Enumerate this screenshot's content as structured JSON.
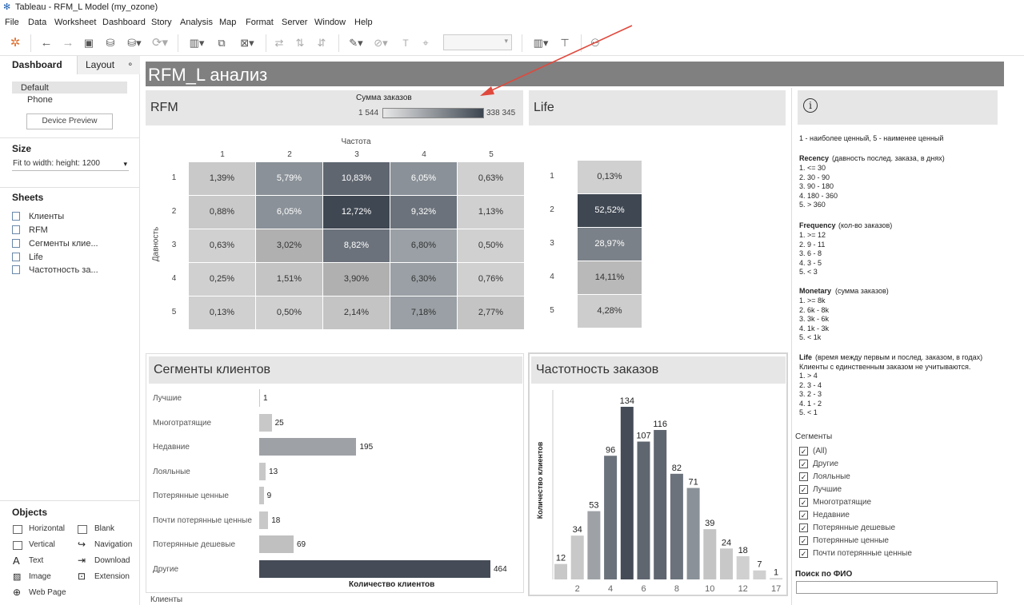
{
  "window": {
    "title": "Tableau - RFM_L Model (my_ozone)"
  },
  "menu": [
    "File",
    "Data",
    "Worksheet",
    "Dashboard",
    "Story",
    "Analysis",
    "Map",
    "Format",
    "Server",
    "Window",
    "Help"
  ],
  "left_pane": {
    "tab_dashboard": "Dashboard",
    "tab_layout": "Layout",
    "devices": [
      "Default",
      "Phone"
    ],
    "device_preview": "Device Preview",
    "size_header": "Size",
    "size_value": "Fit to width: height: 1200",
    "sheets_header": "Sheets",
    "sheets": [
      "Клиенты",
      "RFM",
      "Сегменты клие...",
      "Life",
      "Частотность за..."
    ],
    "objects_header": "Objects",
    "objects": [
      "Horizontal",
      "Blank",
      "Vertical",
      "Navigation",
      "Text",
      "Download",
      "Image",
      "Extension",
      "Web Page"
    ]
  },
  "dashboard": {
    "title": "RFM_L анализ"
  },
  "rfm": {
    "title": "RFM",
    "legend_title": "Сумма заказов",
    "legend_min": "1 544",
    "legend_max": "338 345",
    "col_axis_title": "Частота",
    "row_axis_title": "Давность",
    "cols": [
      "1",
      "2",
      "3",
      "4",
      "5"
    ],
    "rows": [
      "1",
      "2",
      "3",
      "4",
      "5"
    ],
    "cells": [
      [
        "1,39%",
        "5,79%",
        "10,83%",
        "6,05%",
        "0,63%"
      ],
      [
        "0,88%",
        "6,05%",
        "12,72%",
        "9,32%",
        "1,13%"
      ],
      [
        "0,63%",
        "3,02%",
        "8,82%",
        "6,80%",
        "0,50%"
      ],
      [
        "0,25%",
        "1,51%",
        "3,90%",
        "6,30%",
        "0,76%"
      ],
      [
        "0,13%",
        "0,50%",
        "2,14%",
        "7,18%",
        "2,77%"
      ]
    ],
    "shade": [
      [
        "#c9c9c9",
        "#8a9198",
        "#5f6670",
        "#8a9198",
        "#d0d0d0"
      ],
      [
        "#c9c9c9",
        "#8a9198",
        "#3f4752",
        "#6b727b",
        "#d0d0d0"
      ],
      [
        "#d0d0d0",
        "#b0b0b0",
        "#6b727b",
        "#9aa0a5",
        "#d0d0d0"
      ],
      [
        "#d0d0d0",
        "#c4c4c4",
        "#b0b0b0",
        "#9aa0a5",
        "#d0d0d0"
      ],
      [
        "#d0d0d0",
        "#d0d0d0",
        "#c4c4c4",
        "#9aa0a5",
        "#c4c4c4"
      ]
    ]
  },
  "life": {
    "title": "Life",
    "rows": [
      "1",
      "2",
      "3",
      "4",
      "5"
    ],
    "cells": [
      "0,13%",
      "52,52%",
      "28,97%",
      "14,11%",
      "4,28%"
    ],
    "shade": [
      "#d0d0d0",
      "#3f4752",
      "#7b8188",
      "#b9b9b9",
      "#cdcdcd"
    ]
  },
  "notes": {
    "info_icon": "info-icon",
    "intro": "1 - наиболее ценный, 5 - наименее ценный",
    "recency_title": "Recency",
    "recency_sub": "(давность послед. заказа, в днях)",
    "recency": [
      "1. <= 30",
      "2. 30 - 90",
      "3. 90 - 180",
      "4. 180 - 360",
      "5. > 360"
    ],
    "frequency_title": "Frequency",
    "frequency_sub": "(кол-во заказов)",
    "frequency": [
      "1. >= 12",
      "2. 9 - 11",
      "3. 6 - 8",
      "4. 3 - 5",
      "5. < 3"
    ],
    "monetary_title": "Monetary",
    "monetary_sub": "(сумма заказов)",
    "monetary": [
      "1. >= 8k",
      "2. 6k - 8k",
      "3. 3k - 6k",
      "4. 1k - 3k",
      "5.  < 1k"
    ],
    "life_title": "Life",
    "life_sub": "(время между первым и послед. заказом, в годах)",
    "life_note": "Клиенты  с единственным заказом не учитываются.",
    "life": [
      "1. > 4",
      "2. 3 - 4",
      "3. 2 - 3",
      "4. 1 - 2",
      "5. < 1"
    ]
  },
  "filters": {
    "title": "Сегменты",
    "items": [
      "(All)",
      "Другие",
      "Лояльные",
      "Лучшие",
      "Многотратящие",
      "Недавние",
      "Потерянные дешевые",
      "Потерянные ценные",
      "Почти потерянные ценные"
    ],
    "search_title": "Поиск по ФИО",
    "search_value": ""
  },
  "segments": {
    "title": "Сегменты клиентов",
    "x_title": "Количество клиентов",
    "items": [
      {
        "label": "Лучшие",
        "value": 1,
        "color": "#c8c8c8"
      },
      {
        "label": "Многотратящие",
        "value": 25,
        "color": "#c8c8c8"
      },
      {
        "label": "Недавние",
        "value": 195,
        "color": "#9ea2a6"
      },
      {
        "label": "Лояльные",
        "value": 13,
        "color": "#c8c8c8"
      },
      {
        "label": "Потерянные ценные",
        "value": 9,
        "color": "#c8c8c8"
      },
      {
        "label": "Почти потерянные ценные",
        "value": 18,
        "color": "#c8c8c8"
      },
      {
        "label": "Потерянные дешевые",
        "value": 69,
        "color": "#c0c0c0"
      },
      {
        "label": "Другие",
        "value": 464,
        "color": "#454c57"
      }
    ],
    "xmax": 464
  },
  "chart_data": {
    "type": "bar",
    "title": "Частотность заказов",
    "ylabel": "Количество клиентов",
    "x": [
      1,
      2,
      3,
      4,
      5,
      6,
      7,
      8,
      9,
      10,
      11,
      12,
      13,
      14
    ],
    "values": [
      12,
      34,
      53,
      96,
      134,
      107,
      116,
      82,
      71,
      39,
      24,
      18,
      7,
      1
    ],
    "tick_labels": [
      "2",
      "4",
      "6",
      "8",
      "10",
      "12",
      "17"
    ],
    "colors": [
      "#c8c8c8",
      "#c8c8c8",
      "#9ea2a6",
      "#6b727b",
      "#454c57",
      "#5f6670",
      "#5f6670",
      "#6b727b",
      "#8a9198",
      "#c4c4c4",
      "#c8c8c8",
      "#d0d0d0",
      "#d0d0d0",
      "#d0d0d0"
    ],
    "ylim": [
      0,
      134
    ]
  }
}
